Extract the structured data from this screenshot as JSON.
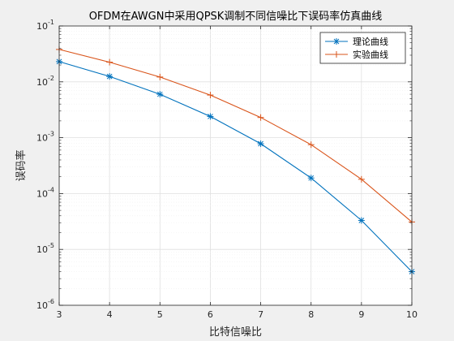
{
  "chart_data": {
    "type": "line",
    "title": "OFDM在AWGN中采用QPSK调制不同信噪比下误码率仿真曲线",
    "xlabel": "比特信噪比",
    "ylabel": "误码率",
    "x": [
      3,
      4,
      5,
      6,
      7,
      8,
      9,
      10
    ],
    "xlim": [
      3,
      10
    ],
    "ylim": [
      1e-06,
      0.1
    ],
    "yscale": "log",
    "x_ticks": [
      "3",
      "4",
      "5",
      "6",
      "7",
      "8",
      "9",
      "10"
    ],
    "y_tick_exponents": [
      "-6",
      "-5",
      "-4",
      "-3",
      "-2",
      "-1"
    ],
    "y_tick_base": "10",
    "grid": true,
    "legend_position": "top-right",
    "series": [
      {
        "name": "理论曲线",
        "color": "#0072BD",
        "marker": "asterisk",
        "values": [
          0.023,
          0.0125,
          0.006,
          0.0024,
          0.00078,
          0.00019,
          3.3e-05,
          4e-06
        ]
      },
      {
        "name": "实验曲线",
        "color": "#D95319",
        "marker": "plus",
        "values": [
          0.038,
          0.0225,
          0.0122,
          0.0058,
          0.0023,
          0.00075,
          0.00018,
          3.1e-05
        ]
      }
    ]
  }
}
